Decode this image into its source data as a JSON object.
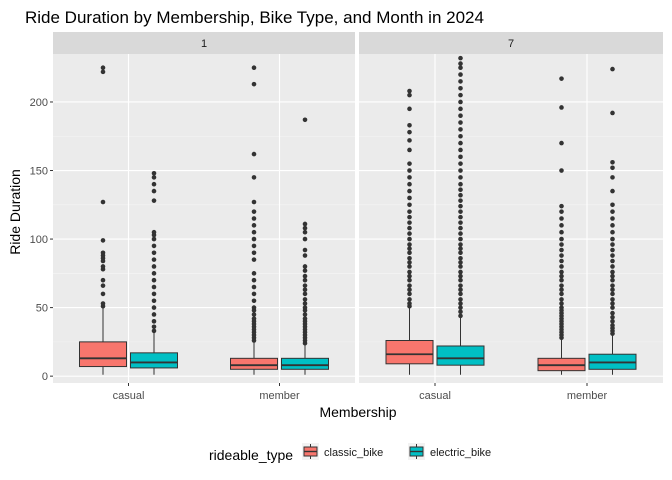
{
  "chart_data": {
    "type": "boxplot",
    "title": "Ride Duration by Membership, Bike Type, and Month in 2024",
    "xlabel": "Membership",
    "ylabel": "Ride Duration",
    "ylim": [
      -5,
      235
    ],
    "yticks": [
      0,
      50,
      100,
      150,
      200
    ],
    "categories": [
      "casual",
      "member"
    ],
    "facets": [
      "1",
      "7"
    ],
    "grid": true,
    "legend": {
      "title": "rideable_type",
      "position": "bottom",
      "items": [
        {
          "name": "classic_bike",
          "color": "#F8766D"
        },
        {
          "name": "electric_bike",
          "color": "#00BFC4"
        }
      ]
    },
    "panels": [
      {
        "facet": "1",
        "boxes": [
          {
            "category": "casual",
            "series": "classic_bike",
            "q1": 7,
            "median": 13,
            "q3": 25,
            "whisker_low": 1,
            "whisker_high": 50,
            "outliers": [
              51,
              53,
              60,
              66,
              70,
              78,
              80,
              84,
              86,
              88,
              90,
              99,
              127,
              222,
              225
            ]
          },
          {
            "category": "casual",
            "series": "electric_bike",
            "q1": 6,
            "median": 10,
            "q3": 17,
            "whisker_low": 1,
            "whisker_high": 32,
            "outliers": [
              33,
              36,
              40,
              45,
              50,
              55,
              60,
              65,
              70,
              75,
              80,
              85,
              90,
              95,
              100,
              103,
              105,
              128,
              135,
              140,
              145,
              148
            ]
          },
          {
            "category": "member",
            "series": "classic_bike",
            "q1": 5,
            "median": 8,
            "q3": 13,
            "whisker_low": 1,
            "whisker_high": 25,
            "outliers": [
              26,
              28,
              30,
              32,
              34,
              36,
              38,
              40,
              42,
              45,
              48,
              50,
              55,
              60,
              65,
              70,
              75,
              85,
              90,
              95,
              100,
              105,
              110,
              115,
              120,
              127,
              145,
              162,
              213,
              225
            ]
          },
          {
            "category": "member",
            "series": "electric_bike",
            "q1": 5,
            "median": 8,
            "q3": 13,
            "whisker_low": 1,
            "whisker_high": 23,
            "outliers": [
              24,
              26,
              28,
              30,
              32,
              34,
              36,
              38,
              40,
              42,
              45,
              48,
              50,
              53,
              56,
              60,
              63,
              66,
              70,
              73,
              77,
              80,
              88,
              92,
              100,
              105,
              108,
              111,
              187
            ]
          }
        ]
      },
      {
        "facet": "7",
        "boxes": [
          {
            "category": "casual",
            "series": "classic_bike",
            "q1": 9,
            "median": 16,
            "q3": 26,
            "whisker_low": 1,
            "whisker_high": 50,
            "outliers": [
              51,
              53,
              56,
              60,
              63,
              66,
              70,
              73,
              76,
              80,
              83,
              86,
              90,
              93,
              96,
              100,
              104,
              108,
              112,
              116,
              120,
              125,
              130,
              135,
              140,
              145,
              150,
              155,
              165,
              172,
              178,
              183,
              195,
              205,
              208
            ]
          },
          {
            "category": "casual",
            "series": "electric_bike",
            "q1": 8,
            "median": 13,
            "q3": 22,
            "whisker_low": 1,
            "whisker_high": 43,
            "outliers": [
              44,
              47,
              50,
              53,
              56,
              60,
              63,
              66,
              70,
              73,
              76,
              80,
              83,
              86,
              90,
              93,
              96,
              100,
              104,
              108,
              112,
              116,
              120,
              124,
              128,
              132,
              136,
              140,
              145,
              150,
              155,
              160,
              165,
              170,
              175,
              180,
              185,
              190,
              195,
              200,
              205,
              210,
              215,
              220,
              225,
              228,
              232
            ]
          },
          {
            "category": "member",
            "series": "classic_bike",
            "q1": 4,
            "median": 8,
            "q3": 13,
            "whisker_low": 1,
            "whisker_high": 27,
            "outliers": [
              28,
              30,
              32,
              34,
              36,
              38,
              40,
              42,
              44,
              46,
              48,
              50,
              53,
              56,
              60,
              63,
              66,
              70,
              73,
              76,
              80,
              84,
              88,
              92,
              96,
              100,
              105,
              110,
              115,
              120,
              124,
              150,
              170,
              196,
              217
            ]
          },
          {
            "category": "member",
            "series": "electric_bike",
            "q1": 5,
            "median": 10,
            "q3": 16,
            "whisker_low": 1,
            "whisker_high": 30,
            "outliers": [
              31,
              33,
              35,
              37,
              40,
              43,
              46,
              50,
              53,
              56,
              60,
              63,
              66,
              70,
              73,
              76,
              80,
              84,
              88,
              92,
              96,
              100,
              105,
              110,
              115,
              120,
              125,
              135,
              145,
              152,
              156,
              192,
              224
            ]
          }
        ]
      }
    ]
  }
}
